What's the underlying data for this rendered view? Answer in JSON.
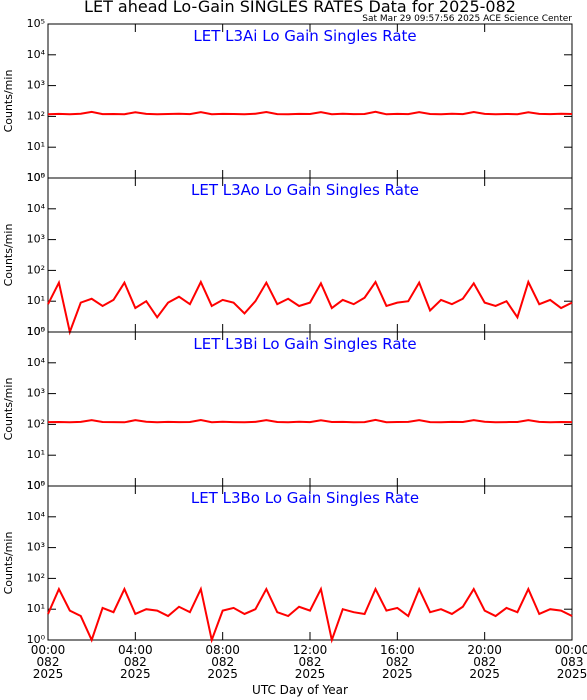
{
  "title": "LET ahead Lo-Gain SINGLES RATES Data for 2025-082",
  "timestamp": "Sat Mar 29 09:57:56 2025 ACE Science Center",
  "x_label": "UTC Day of Year",
  "chart_data": [
    {
      "type": "line",
      "title": "LET L3Ai Lo Gain Singles Rate",
      "y_label": "Counts/min",
      "log_y": true,
      "xlim": [
        0,
        24
      ],
      "xticks": [
        0,
        4,
        8,
        12,
        16,
        20,
        24
      ],
      "ylim": [
        1,
        100000
      ],
      "yticks": [
        {
          "value": 1,
          "label": "10⁰"
        },
        {
          "value": 10,
          "label": "10¹"
        },
        {
          "value": 100,
          "label": "10²"
        },
        {
          "value": 1000,
          "label": "10³"
        },
        {
          "value": 10000,
          "label": "10⁴"
        },
        {
          "value": 100000,
          "label": "10⁵"
        }
      ],
      "series": [
        {
          "name": "L3Ai",
          "color": "#ff0000",
          "x": [
            0,
            0.5,
            1,
            1.5,
            2,
            2.5,
            3,
            3.5,
            4,
            4.5,
            5,
            5.5,
            6,
            6.5,
            7,
            7.5,
            8,
            8.5,
            9,
            9.5,
            10,
            10.5,
            11,
            11.5,
            12,
            12.5,
            13,
            13.5,
            14,
            14.5,
            15,
            15.5,
            16,
            16.5,
            17,
            17.5,
            18,
            18.5,
            19,
            19.5,
            20,
            20.5,
            21,
            21.5,
            22,
            22.5,
            23,
            23.5,
            24
          ],
          "values": [
            118,
            121,
            117,
            122,
            140,
            119,
            120,
            118,
            136,
            121,
            117,
            120,
            122,
            119,
            138,
            118,
            121,
            120,
            117,
            122,
            139,
            119,
            118,
            121,
            120,
            137,
            118,
            122,
            119,
            120,
            141,
            117,
            121,
            119,
            137,
            120,
            118,
            122,
            119,
            139,
            121,
            117,
            120,
            118,
            136,
            121,
            119,
            122,
            120
          ]
        }
      ]
    },
    {
      "type": "line",
      "title": "LET L3Ao Lo Gain Singles Rate",
      "y_label": "Counts/min",
      "log_y": true,
      "xlim": [
        0,
        24
      ],
      "xticks": [
        0,
        4,
        8,
        12,
        16,
        20,
        24
      ],
      "ylim": [
        1,
        100000
      ],
      "yticks": [
        {
          "value": 1,
          "label": "10⁰"
        },
        {
          "value": 10,
          "label": "10¹"
        },
        {
          "value": 100,
          "label": "10²"
        },
        {
          "value": 1000,
          "label": "10³"
        },
        {
          "value": 10000,
          "label": "10⁴"
        },
        {
          "value": 100000,
          "label": "10⁵"
        }
      ],
      "series": [
        {
          "name": "L3Ao",
          "color": "#ff0000",
          "x": [
            0,
            0.5,
            1,
            1.5,
            2,
            2.5,
            3,
            3.5,
            4,
            4.5,
            5,
            5.5,
            6,
            6.5,
            7,
            7.5,
            8,
            8.5,
            9,
            9.5,
            10,
            10.5,
            11,
            11.5,
            12,
            12.5,
            13,
            13.5,
            14,
            14.5,
            15,
            15.5,
            16,
            16.5,
            17,
            17.5,
            18,
            18.5,
            19,
            19.5,
            20,
            20.5,
            21,
            21.5,
            22,
            22.5,
            23,
            23.5,
            24
          ],
          "values": [
            8,
            40,
            1,
            9,
            12,
            7,
            11,
            40,
            6,
            10,
            3,
            9,
            14,
            8,
            42,
            7,
            11,
            9,
            4,
            10,
            40,
            8,
            12,
            7,
            9,
            38,
            6,
            11,
            8,
            13,
            42,
            7,
            9,
            10,
            40,
            5,
            11,
            8,
            12,
            38,
            9,
            7,
            10,
            3,
            42,
            8,
            11,
            6,
            9
          ]
        }
      ]
    },
    {
      "type": "line",
      "title": "LET L3Bi Lo Gain Singles Rate",
      "y_label": "Counts/min",
      "log_y": true,
      "xlim": [
        0,
        24
      ],
      "xticks": [
        0,
        4,
        8,
        12,
        16,
        20,
        24
      ],
      "ylim": [
        1,
        100000
      ],
      "yticks": [
        {
          "value": 1,
          "label": "10⁰"
        },
        {
          "value": 10,
          "label": "10¹"
        },
        {
          "value": 100,
          "label": "10²"
        },
        {
          "value": 1000,
          "label": "10³"
        },
        {
          "value": 10000,
          "label": "10⁴"
        },
        {
          "value": 100000,
          "label": "10⁵"
        }
      ],
      "series": [
        {
          "name": "L3Bi",
          "color": "#ff0000",
          "x": [
            0,
            0.5,
            1,
            1.5,
            2,
            2.5,
            3,
            3.5,
            4,
            4.5,
            5,
            5.5,
            6,
            6.5,
            7,
            7.5,
            8,
            8.5,
            9,
            9.5,
            10,
            10.5,
            11,
            11.5,
            12,
            12.5,
            13,
            13.5,
            14,
            14.5,
            15,
            15.5,
            16,
            16.5,
            17,
            17.5,
            18,
            18.5,
            19,
            19.5,
            20,
            20.5,
            21,
            21.5,
            22,
            22.5,
            23,
            23.5,
            24
          ],
          "values": [
            119,
            120,
            118,
            121,
            138,
            120,
            119,
            117,
            137,
            122,
            118,
            121,
            119,
            120,
            139,
            118,
            122,
            119,
            118,
            121,
            138,
            120,
            117,
            122,
            119,
            136,
            120,
            121,
            118,
            119,
            140,
            118,
            120,
            121,
            137,
            119,
            117,
            121,
            120,
            138,
            122,
            118,
            119,
            120,
            137,
            121,
            118,
            120,
            119
          ]
        }
      ]
    },
    {
      "type": "line",
      "title": "LET L3Bo Lo Gain Singles Rate",
      "y_label": "Counts/min",
      "log_y": true,
      "xlim": [
        0,
        24
      ],
      "xticks": [
        {
          "value": 0,
          "label": "00:00\n082\n2025"
        },
        {
          "value": 4,
          "label": "04:00\n082\n2025"
        },
        {
          "value": 8,
          "label": "08:00\n082\n2025"
        },
        {
          "value": 12,
          "label": "12:00\n082\n2025"
        },
        {
          "value": 16,
          "label": "16:00\n082\n2025"
        },
        {
          "value": 20,
          "label": "20:00\n082\n2025"
        },
        {
          "value": 24,
          "label": "00:00\n083\n2025"
        }
      ],
      "ylim": [
        1,
        100000
      ],
      "yticks": [
        {
          "value": 1,
          "label": "10⁰"
        },
        {
          "value": 10,
          "label": "10¹"
        },
        {
          "value": 100,
          "label": "10²"
        },
        {
          "value": 1000,
          "label": "10³"
        },
        {
          "value": 10000,
          "label": "10⁴"
        },
        {
          "value": 100000,
          "label": "10⁵"
        }
      ],
      "series": [
        {
          "name": "L3Bo",
          "color": "#ff0000",
          "x": [
            0,
            0.5,
            1,
            1.5,
            2,
            2.5,
            3,
            3.5,
            4,
            4.5,
            5,
            5.5,
            6,
            6.5,
            7,
            7.5,
            8,
            8.5,
            9,
            9.5,
            10,
            10.5,
            11,
            11.5,
            12,
            12.5,
            13,
            13.5,
            14,
            14.5,
            15,
            15.5,
            16,
            16.5,
            17,
            17.5,
            18,
            18.5,
            19,
            19.5,
            20,
            20.5,
            21,
            21.5,
            22,
            22.5,
            23,
            23.5,
            24
          ],
          "values": [
            7,
            45,
            9,
            6,
            1,
            11,
            8,
            45,
            7,
            10,
            9,
            6,
            12,
            8,
            45,
            1,
            9,
            11,
            7,
            10,
            45,
            8,
            6,
            12,
            9,
            45,
            1,
            10,
            8,
            7,
            45,
            9,
            11,
            6,
            45,
            8,
            10,
            7,
            12,
            45,
            9,
            6,
            11,
            8,
            45,
            7,
            10,
            9,
            6
          ]
        }
      ]
    }
  ]
}
